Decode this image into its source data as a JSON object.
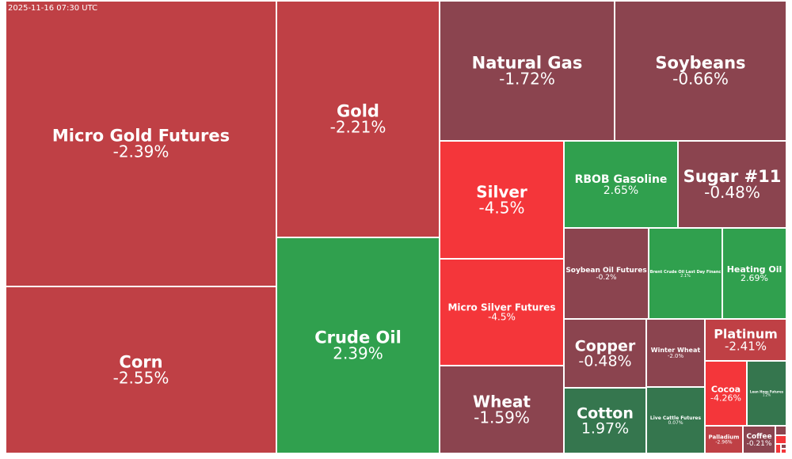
{
  "timestamp": "2025-11-16 07:30 UTC",
  "colors": {
    "strong_down": "#f4363a",
    "down": "#bf4045",
    "mild_down": "#8b444f",
    "up": "#30a04e",
    "mild_up": "#35764e",
    "border": "#ffffff"
  },
  "chart_data": {
    "type": "treemap",
    "title": "",
    "tiles": [
      {
        "name": "Micro Gold Futures",
        "change": "-2.39%",
        "value": -2.39,
        "color": "down"
      },
      {
        "name": "Corn",
        "change": "-2.55%",
        "value": -2.55,
        "color": "down"
      },
      {
        "name": "Gold",
        "change": "-2.21%",
        "value": -2.21,
        "color": "down"
      },
      {
        "name": "Crude Oil",
        "change": "2.39%",
        "value": 2.39,
        "color": "up"
      },
      {
        "name": "Natural Gas",
        "change": "-1.72%",
        "value": -1.72,
        "color": "mild_down"
      },
      {
        "name": "Soybeans",
        "change": "-0.66%",
        "value": -0.66,
        "color": "mild_down"
      },
      {
        "name": "Silver",
        "change": "-4.5%",
        "value": -4.5,
        "color": "strong_down"
      },
      {
        "name": "Micro Silver Futures",
        "change": "-4.5%",
        "value": -4.5,
        "color": "strong_down"
      },
      {
        "name": "Wheat",
        "change": "-1.59%",
        "value": -1.59,
        "color": "mild_down"
      },
      {
        "name": "RBOB Gasoline",
        "change": "2.65%",
        "value": 2.65,
        "color": "up"
      },
      {
        "name": "Sugar #11",
        "change": "-0.48%",
        "value": -0.48,
        "color": "mild_down"
      },
      {
        "name": "Soybean Oil Futures",
        "change": "-0.2%",
        "value": -0.2,
        "color": "mild_down"
      },
      {
        "name": "Brent Crude Oil Last Day Financ",
        "change": "2.1%",
        "value": 2.1,
        "color": "up"
      },
      {
        "name": "Heating Oil",
        "change": "2.69%",
        "value": 2.69,
        "color": "up"
      },
      {
        "name": "Copper",
        "change": "-0.48%",
        "value": -0.48,
        "color": "mild_down"
      },
      {
        "name": "Winter Wheat",
        "change": "-2.0%",
        "value": -2.0,
        "color": "mild_down"
      },
      {
        "name": "Platinum",
        "change": "-2.41%",
        "value": -2.41,
        "color": "down"
      },
      {
        "name": "Cotton",
        "change": "1.97%",
        "value": 1.97,
        "color": "mild_up"
      },
      {
        "name": "Live Cattle Futures",
        "change": "0.07%",
        "value": 0.07,
        "color": "mild_up"
      },
      {
        "name": "Cocoa",
        "change": "-4.26%",
        "value": -4.26,
        "color": "strong_down"
      },
      {
        "name": "Lean Hogs Futures",
        "change": "1.2%",
        "value": 1.2,
        "color": "mild_up"
      },
      {
        "name": "Palladium",
        "change": "-2.96%",
        "value": -2.96,
        "color": "down"
      },
      {
        "name": "Coffee",
        "change": "-0.21%",
        "value": -0.21,
        "color": "mild_down"
      },
      {
        "name": "",
        "change": "",
        "value": null,
        "color": "mild_down"
      },
      {
        "name": "",
        "change": "",
        "value": null,
        "color": "strong_down"
      },
      {
        "name": "",
        "change": "",
        "value": null,
        "color": "strong_down"
      },
      {
        "name": "",
        "change": "",
        "value": null,
        "color": "mild_down"
      },
      {
        "name": "",
        "change": "",
        "value": null,
        "color": "strong_down"
      }
    ]
  }
}
